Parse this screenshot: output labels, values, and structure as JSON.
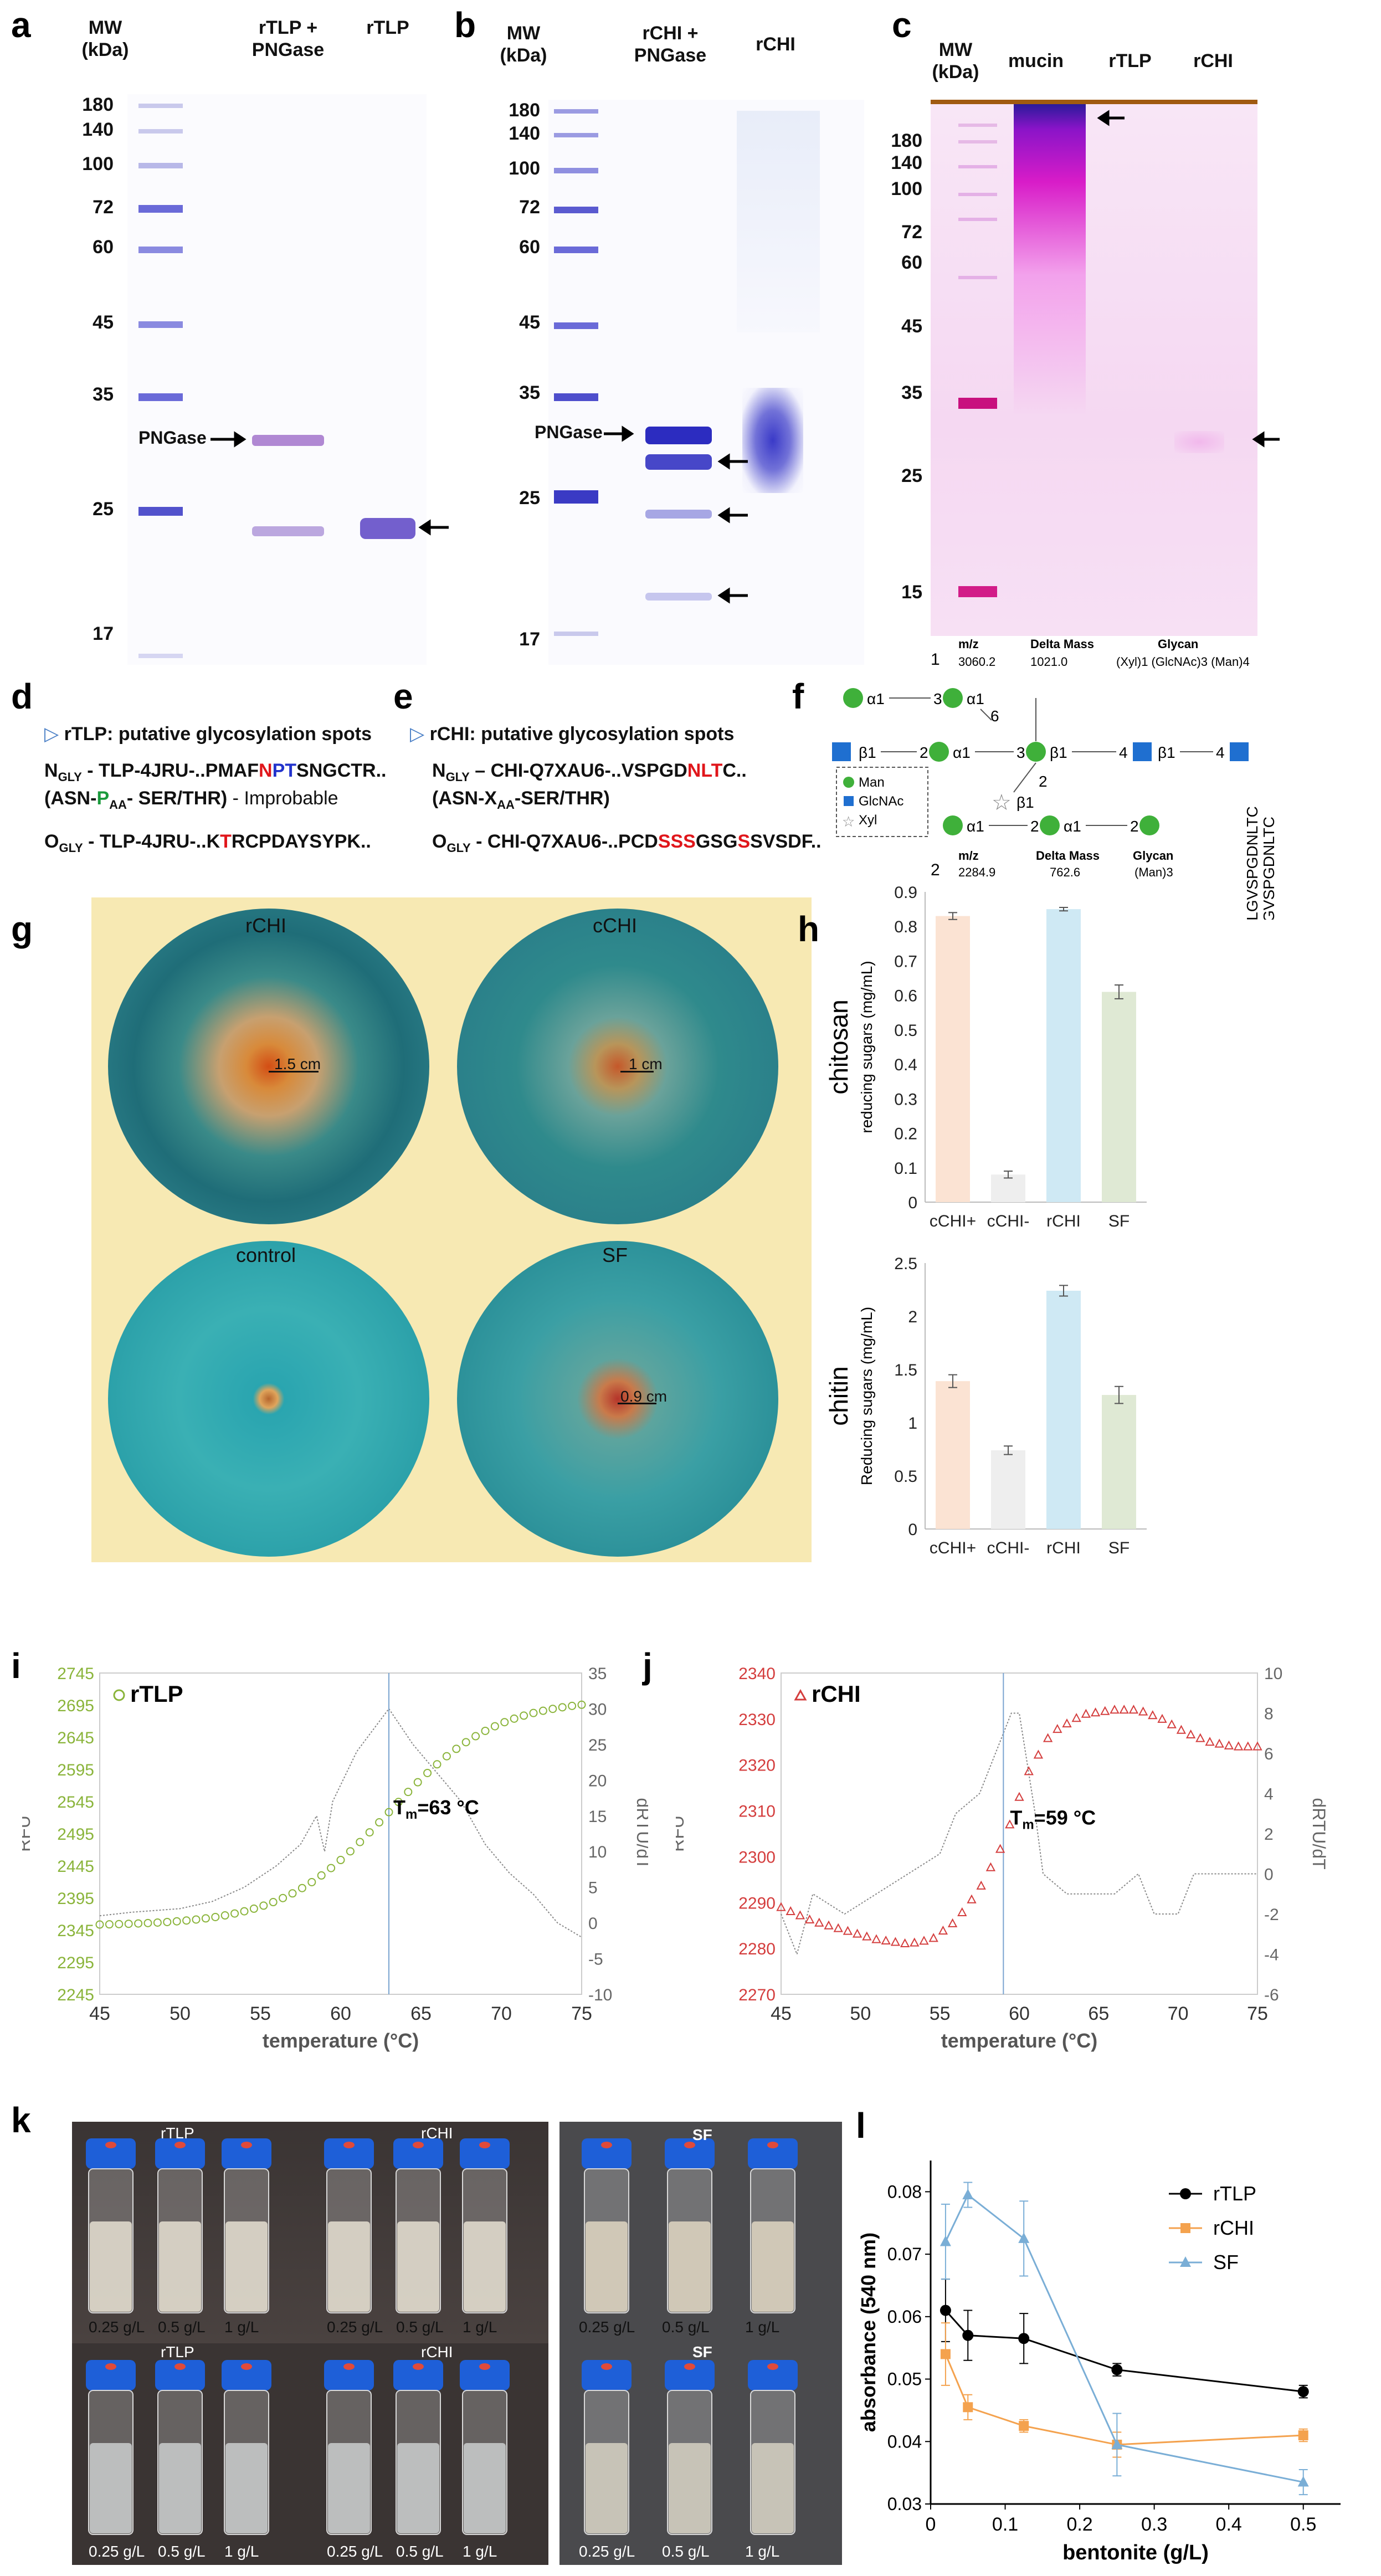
{
  "panels": {
    "a": "a",
    "b": "b",
    "c": "c",
    "d": "d",
    "e": "e",
    "f": "f",
    "g": "g",
    "h": "h",
    "i": "i",
    "j": "j",
    "k": "k",
    "l": "l"
  },
  "gel_a": {
    "mw_header": "MW\n(kDa)",
    "lanes": [
      "rTLP +\nPNGase",
      "rTLP"
    ],
    "mw_ticks": [
      "180",
      "140",
      "100",
      "72",
      "60",
      "45",
      "35",
      "25",
      "17"
    ],
    "pngase_label": "PNGase"
  },
  "gel_b": {
    "mw_header": "MW\n(kDa)",
    "lanes": [
      "rCHI +\nPNGase",
      "rCHI"
    ],
    "mw_ticks": [
      "180",
      "140",
      "100",
      "72",
      "60",
      "45",
      "35",
      "25",
      "17"
    ],
    "pngase_label": "PNGase"
  },
  "gel_c": {
    "mw_header": "MW\n(kDa)",
    "lanes": [
      "mucin",
      "rTLP",
      "rCHI"
    ],
    "mw_ticks": [
      "180",
      "140",
      "100",
      "72",
      "60",
      "45",
      "35",
      "25",
      "15"
    ]
  },
  "panel_d": {
    "title": "rTLP: putative glycosylation spots",
    "n_gly_prefix": "N",
    "n_gly_sub": "GLY",
    "n_seq_a": " - TLP-4JRU-..PMAF",
    "n_seq_n": "N",
    "n_seq_p": "PT",
    "n_seq_b": "SNGCTR..",
    "rule_a": "(ASN-",
    "rule_p": "P",
    "rule_sub": "AA",
    "rule_b": "- SER/THR)",
    "rule_note": " - Improbable",
    "o_gly_prefix": "O",
    "o_gly_sub": "GLY",
    "o_seq_a": " - TLP-4JRU-..K",
    "o_seq_t": "T",
    "o_seq_b": "RCPDAYSYPK.."
  },
  "panel_e": {
    "title": "rCHI: putative glycosylation spots",
    "n_gly_prefix": "N",
    "n_gly_sub": "GLY",
    "n_seq_a": " – CHI-Q7XAU6-..VSPGD",
    "n_seq_nlt": "NLT",
    "n_seq_b": "C..",
    "rule_a": "(ASN-X",
    "rule_sub": "AA",
    "rule_b": "-SER/THR)",
    "o_gly_prefix": "O",
    "o_gly_sub": "GLY",
    "o_seq_a": " - CHI-Q7XAU6-..PCD",
    "o_seq_sss": "SSS",
    "o_seq_b": "GSG",
    "o_seq_s": "S",
    "o_seq_c": "SVSDF.."
  },
  "panel_f": {
    "glycan1": {
      "num": "1",
      "mz_label": "m/z",
      "mz": "3060.2",
      "dm_label": "Delta Mass",
      "dm": "1021.0",
      "glycan_label": "Glycan",
      "glycan": "(Xyl)1 (GlcNAc)3 (Man)4"
    },
    "glycan2": {
      "num": "2",
      "mz_label": "m/z",
      "mz": "2284.9",
      "dm_label": "Delta Mass",
      "dm": "762.6",
      "glycan_label": "Glycan",
      "glycan": "(Man)3"
    },
    "linkages": [
      "α1",
      "3",
      "α1",
      "6",
      "β1",
      "2",
      "α1",
      "3",
      "β1",
      "4",
      "β1",
      "4",
      "2",
      "β1"
    ],
    "linkages2": [
      "α1",
      "2",
      "α1",
      "2"
    ],
    "legend": [
      "Man",
      "GlcNAc",
      "Xyl"
    ],
    "peptide1": "DYCSQLGVSPGDNLTC",
    "peptide2": "KDYCSQLGVSPGDNLTC"
  },
  "panel_g": {
    "plates": [
      {
        "name": "rCHI",
        "halo": "1.5 cm"
      },
      {
        "name": "cCHI",
        "halo": "1 cm"
      },
      {
        "name": "control",
        "halo": ""
      },
      {
        "name": "SF",
        "halo": "0.9 cm"
      }
    ]
  },
  "panel_h": {
    "top_title": "chitosan",
    "bottom_title": "chitin",
    "top_ylabel": "reducing sugars (mg/mL)",
    "bottom_ylabel": "Reducing sugars (mg/mL)"
  },
  "panel_i_title": "rTLP",
  "panel_j_title": "rCHI",
  "panel_i_tm_label": "T",
  "panel_i_tm_sub": "m",
  "panel_i_tm_value": "=63 °C",
  "panel_j_tm_label": "T",
  "panel_j_tm_sub": "m",
  "panel_j_tm_value": "=59 °C",
  "panel_k": {
    "top_groups": [
      "rTLP",
      "rCHI"
    ],
    "bottom_groups": [
      "rTLP",
      "rCHI"
    ],
    "sf_label": "SF",
    "conc": [
      "0.25 g/L",
      "0.5 g/L",
      "1 g/L"
    ]
  },
  "chart_data": [
    {
      "id": "h-chitosan",
      "type": "bar",
      "title": "chitosan",
      "ylabel": "reducing sugars (mg/mL)",
      "categories": [
        "cCHI+",
        "cCHI-",
        "rCHI",
        "SF"
      ],
      "values": [
        0.83,
        0.08,
        0.85,
        0.61
      ],
      "errors": [
        0.01,
        0.01,
        0.005,
        0.02
      ],
      "colors": [
        "#fbe3d3",
        "#eeeeee",
        "#cfe9f4",
        "#dfe9d4"
      ],
      "ylim": [
        0,
        0.9
      ],
      "yticks": [
        "0",
        "0.1",
        "0.2",
        "0.3",
        "0.4",
        "0.5",
        "0.6",
        "0.7",
        "0.8",
        "0.9"
      ]
    },
    {
      "id": "h-chitin",
      "type": "bar",
      "title": "chitin",
      "ylabel": "Reducing sugars (mg/mL)",
      "categories": [
        "cCHI+",
        "cCHI-",
        "rCHI",
        "SF"
      ],
      "values": [
        1.39,
        0.74,
        2.24,
        1.26
      ],
      "errors": [
        0.06,
        0.04,
        0.05,
        0.08
      ],
      "colors": [
        "#fbe3d3",
        "#eeeeee",
        "#cfe9f4",
        "#dfe9d4"
      ],
      "ylim": [
        0,
        2.5
      ],
      "yticks": [
        "0",
        "0.5",
        "1",
        "1.5",
        "2",
        "2.5"
      ]
    },
    {
      "id": "i-rtlp",
      "type": "scatter",
      "title": "rTLP",
      "xlabel": "temperature (°C)",
      "ylabel": "RFU",
      "y2label": "dRTU/dT",
      "xlim": [
        45,
        75
      ],
      "ylim": [
        2245,
        2745
      ],
      "y2lim": [
        -10,
        35
      ],
      "xticks": [
        "45",
        "50",
        "55",
        "60",
        "65",
        "70",
        "75"
      ],
      "yticks": [
        "2245",
        "2295",
        "2345",
        "2395",
        "2445",
        "2495",
        "2545",
        "2595",
        "2645",
        "2695",
        "2745"
      ],
      "y2ticks": [
        "-10",
        "-5",
        "0",
        "5",
        "10",
        "15",
        "20",
        "25",
        "30",
        "35"
      ],
      "tm": 63,
      "rfu_params": {
        "base": 2352,
        "top": 2705,
        "mid": 63,
        "k": 0.3
      },
      "deriv_points": [
        [
          45,
          1
        ],
        [
          47,
          1.5
        ],
        [
          50,
          2
        ],
        [
          52,
          3
        ],
        [
          54,
          5
        ],
        [
          56,
          8
        ],
        [
          57.5,
          11
        ],
        [
          58.5,
          15
        ],
        [
          59,
          10
        ],
        [
          59.5,
          17
        ],
        [
          61,
          24
        ],
        [
          63,
          30
        ],
        [
          64.5,
          25
        ],
        [
          66,
          21
        ],
        [
          67.5,
          17
        ],
        [
          69,
          11
        ],
        [
          70.5,
          7
        ],
        [
          72,
          4
        ],
        [
          73.5,
          0
        ],
        [
          75,
          -2
        ]
      ]
    },
    {
      "id": "j-rchi",
      "type": "scatter",
      "title": "rCHI",
      "xlabel": "temperature (°C)",
      "ylabel": "RFU",
      "y2label": "dRTU/dT",
      "xlim": [
        45,
        75
      ],
      "ylim": [
        2270,
        2340
      ],
      "y2lim": [
        -6,
        10
      ],
      "xticks": [
        "45",
        "50",
        "55",
        "60",
        "65",
        "70",
        "75"
      ],
      "yticks": [
        "2270",
        "2280",
        "2290",
        "2300",
        "2310",
        "2320",
        "2330",
        "2340"
      ],
      "y2ticks": [
        "-6",
        "-4",
        "-2",
        "0",
        "2",
        "4",
        "6",
        "8",
        "10"
      ],
      "tm": 59,
      "rfu_points": [
        [
          45,
          2289
        ],
        [
          47,
          2286
        ],
        [
          49,
          2284
        ],
        [
          51,
          2282
        ],
        [
          53,
          2281
        ],
        [
          54.5,
          2282
        ],
        [
          56,
          2286
        ],
        [
          57.5,
          2293
        ],
        [
          59,
          2303
        ],
        [
          60.5,
          2318
        ],
        [
          62,
          2327
        ],
        [
          64,
          2331
        ],
        [
          66,
          2332
        ],
        [
          67.5,
          2332
        ],
        [
          69,
          2330
        ],
        [
          70.5,
          2327
        ],
        [
          72,
          2325
        ],
        [
          73.5,
          2324
        ],
        [
          75,
          2324
        ]
      ],
      "deriv_points": [
        [
          45,
          -2
        ],
        [
          46,
          -4
        ],
        [
          47,
          -1
        ],
        [
          49,
          -2
        ],
        [
          51,
          -1
        ],
        [
          53,
          0
        ],
        [
          55,
          1
        ],
        [
          56,
          3
        ],
        [
          57.5,
          4
        ],
        [
          58.5,
          6
        ],
        [
          59.5,
          8
        ],
        [
          60,
          8
        ],
        [
          61,
          3
        ],
        [
          61.5,
          0
        ],
        [
          63,
          -1
        ],
        [
          64,
          -1
        ],
        [
          66,
          -1
        ],
        [
          67.5,
          0
        ],
        [
          68.5,
          -2
        ],
        [
          70,
          -2
        ],
        [
          71,
          0
        ],
        [
          73,
          0
        ],
        [
          75,
          0
        ]
      ]
    },
    {
      "id": "l-bentonite",
      "type": "line",
      "xlabel": "bentonite (g/L)",
      "ylabel": "absorbance (540 nm)",
      "xlim": [
        0,
        0.55
      ],
      "ylim": [
        0.03,
        0.085
      ],
      "xticks": [
        "0",
        "0.1",
        "0.2",
        "0.3",
        "0.4",
        "0.5"
      ],
      "yticks": [
        "0.03",
        "0.04",
        "0.05",
        "0.06",
        "0.07",
        "0.08"
      ],
      "series": [
        {
          "name": "rTLP",
          "color": "#000000",
          "marker": "circle",
          "x": [
            0.02,
            0.05,
            0.125,
            0.25,
            0.5
          ],
          "y": [
            0.061,
            0.057,
            0.0565,
            0.0515,
            0.048
          ],
          "err": [
            0.005,
            0.004,
            0.004,
            0.001,
            0.001
          ]
        },
        {
          "name": "rCHI",
          "color": "#f4a24e",
          "marker": "square",
          "x": [
            0.02,
            0.05,
            0.125,
            0.25,
            0.5
          ],
          "y": [
            0.054,
            0.0455,
            0.0425,
            0.0395,
            0.041
          ],
          "err": [
            0.005,
            0.002,
            0.001,
            0.002,
            0.001
          ]
        },
        {
          "name": "SF",
          "color": "#7aaed6",
          "marker": "triangle",
          "x": [
            0.02,
            0.05,
            0.125,
            0.25,
            0.5
          ],
          "y": [
            0.072,
            0.0795,
            0.0725,
            0.0395,
            0.0335
          ],
          "err": [
            0.006,
            0.002,
            0.006,
            0.005,
            0.002
          ]
        }
      ]
    }
  ]
}
